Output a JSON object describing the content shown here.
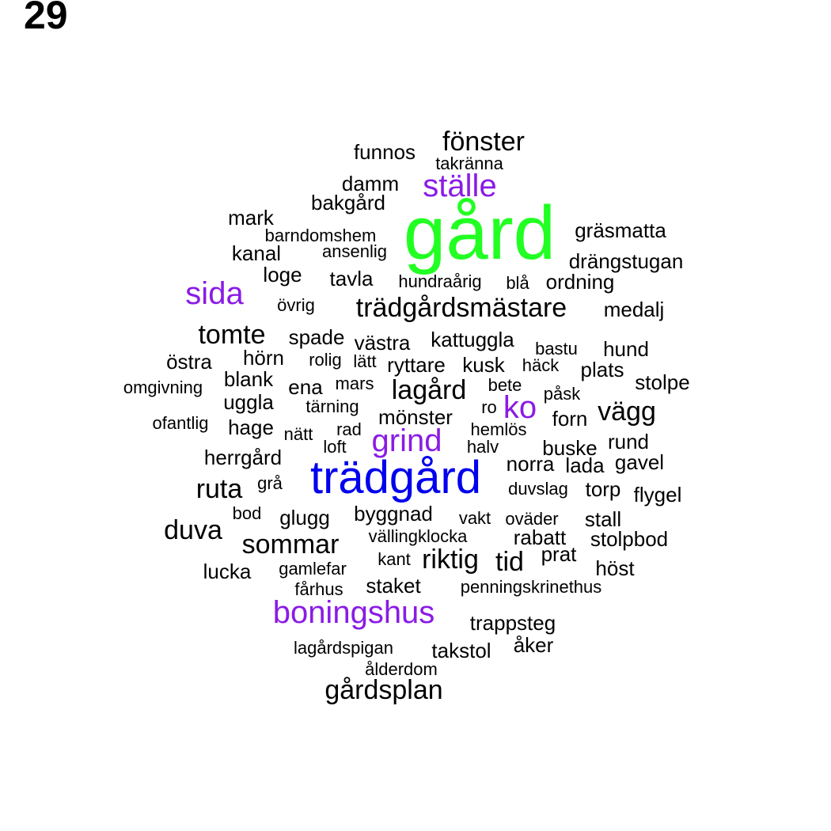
{
  "page_number": "29",
  "colors": {
    "default": "#000000",
    "green": "#22ff22",
    "blue": "#0000ee",
    "purple": "#8a1be6"
  },
  "words": [
    {
      "text": "gård",
      "color": "green",
      "size": "xxl"
    },
    {
      "text": "trädgård",
      "color": "blue",
      "size": "xl"
    },
    {
      "text": "ställe",
      "color": "purple",
      "size": "l"
    },
    {
      "text": "sida",
      "color": "purple",
      "size": "l"
    },
    {
      "text": "boningshus",
      "color": "purple",
      "size": "l"
    },
    {
      "text": "grind",
      "color": "purple",
      "size": "l"
    },
    {
      "text": "ko",
      "color": "purple",
      "size": "l"
    },
    {
      "text": "fönster",
      "color": "default",
      "size": "m"
    },
    {
      "text": "funnos",
      "color": "default",
      "size": "s"
    },
    {
      "text": "takränna",
      "color": "default",
      "size": "xs"
    },
    {
      "text": "damm",
      "color": "default",
      "size": "s"
    },
    {
      "text": "bakgård",
      "color": "default",
      "size": "s"
    },
    {
      "text": "mark",
      "color": "default",
      "size": "s"
    },
    {
      "text": "barndomshem",
      "color": "default",
      "size": "xs"
    },
    {
      "text": "kanal",
      "color": "default",
      "size": "s"
    },
    {
      "text": "ansenlig",
      "color": "default",
      "size": "xs"
    },
    {
      "text": "gräsmatta",
      "color": "default",
      "size": "s"
    },
    {
      "text": "drängstugan",
      "color": "default",
      "size": "s"
    },
    {
      "text": "loge",
      "color": "default",
      "size": "s"
    },
    {
      "text": "tavla",
      "color": "default",
      "size": "s"
    },
    {
      "text": "hundraårig",
      "color": "default",
      "size": "xs"
    },
    {
      "text": "blå",
      "color": "default",
      "size": "xs"
    },
    {
      "text": "ordning",
      "color": "default",
      "size": "s"
    },
    {
      "text": "övrig",
      "color": "default",
      "size": "xs"
    },
    {
      "text": "trädgårdsmästare",
      "color": "default",
      "size": "m"
    },
    {
      "text": "medalj",
      "color": "default",
      "size": "s"
    },
    {
      "text": "tomte",
      "color": "default",
      "size": "m"
    },
    {
      "text": "spade",
      "color": "default",
      "size": "s"
    },
    {
      "text": "västra",
      "color": "default",
      "size": "s"
    },
    {
      "text": "kattuggla",
      "color": "default",
      "size": "s"
    },
    {
      "text": "bastu",
      "color": "default",
      "size": "xs"
    },
    {
      "text": "hund",
      "color": "default",
      "size": "s"
    },
    {
      "text": "östra",
      "color": "default",
      "size": "s"
    },
    {
      "text": "hörn",
      "color": "default",
      "size": "s"
    },
    {
      "text": "rolig",
      "color": "default",
      "size": "xs"
    },
    {
      "text": "lätt",
      "color": "default",
      "size": "xs"
    },
    {
      "text": "ryttare",
      "color": "default",
      "size": "s"
    },
    {
      "text": "kusk",
      "color": "default",
      "size": "s"
    },
    {
      "text": "häck",
      "color": "default",
      "size": "xs"
    },
    {
      "text": "plats",
      "color": "default",
      "size": "s"
    },
    {
      "text": "blank",
      "color": "default",
      "size": "s"
    },
    {
      "text": "stolpe",
      "color": "default",
      "size": "s"
    },
    {
      "text": "omgivning",
      "color": "default",
      "size": "xs"
    },
    {
      "text": "ena",
      "color": "default",
      "size": "s"
    },
    {
      "text": "mars",
      "color": "default",
      "size": "xs"
    },
    {
      "text": "lagård",
      "color": "default",
      "size": "m"
    },
    {
      "text": "bete",
      "color": "default",
      "size": "xs"
    },
    {
      "text": "påsk",
      "color": "default",
      "size": "xs"
    },
    {
      "text": "uggla",
      "color": "default",
      "size": "s"
    },
    {
      "text": "tärning",
      "color": "default",
      "size": "xs"
    },
    {
      "text": "ro",
      "color": "default",
      "size": "xs"
    },
    {
      "text": "vägg",
      "color": "default",
      "size": "m"
    },
    {
      "text": "ofantlig",
      "color": "default",
      "size": "xs"
    },
    {
      "text": "hage",
      "color": "default",
      "size": "s"
    },
    {
      "text": "mönster",
      "color": "default",
      "size": "s"
    },
    {
      "text": "forn",
      "color": "default",
      "size": "s"
    },
    {
      "text": "nätt",
      "color": "default",
      "size": "xs"
    },
    {
      "text": "rad",
      "color": "default",
      "size": "xs"
    },
    {
      "text": "hemlös",
      "color": "default",
      "size": "xs"
    },
    {
      "text": "rund",
      "color": "default",
      "size": "s"
    },
    {
      "text": "loft",
      "color": "default",
      "size": "xs"
    },
    {
      "text": "halv",
      "color": "default",
      "size": "xs"
    },
    {
      "text": "buske",
      "color": "default",
      "size": "s"
    },
    {
      "text": "herrgård",
      "color": "default",
      "size": "s"
    },
    {
      "text": "norra",
      "color": "default",
      "size": "s"
    },
    {
      "text": "lada",
      "color": "default",
      "size": "s"
    },
    {
      "text": "gavel",
      "color": "default",
      "size": "s"
    },
    {
      "text": "ruta",
      "color": "default",
      "size": "m"
    },
    {
      "text": "grå",
      "color": "default",
      "size": "xs"
    },
    {
      "text": "duvslag",
      "color": "default",
      "size": "xs"
    },
    {
      "text": "torp",
      "color": "default",
      "size": "s"
    },
    {
      "text": "flygel",
      "color": "default",
      "size": "s"
    },
    {
      "text": "bod",
      "color": "default",
      "size": "xs"
    },
    {
      "text": "glugg",
      "color": "default",
      "size": "s"
    },
    {
      "text": "byggnad",
      "color": "default",
      "size": "s"
    },
    {
      "text": "vakt",
      "color": "default",
      "size": "xs"
    },
    {
      "text": "oväder",
      "color": "default",
      "size": "xs"
    },
    {
      "text": "stall",
      "color": "default",
      "size": "s"
    },
    {
      "text": "duva",
      "color": "default",
      "size": "m"
    },
    {
      "text": "sommar",
      "color": "default",
      "size": "m"
    },
    {
      "text": "vällingklocka",
      "color": "default",
      "size": "xs"
    },
    {
      "text": "rabatt",
      "color": "default",
      "size": "s"
    },
    {
      "text": "stolpbod",
      "color": "default",
      "size": "s"
    },
    {
      "text": "prat",
      "color": "default",
      "size": "s"
    },
    {
      "text": "lucka",
      "color": "default",
      "size": "s"
    },
    {
      "text": "gamlefar",
      "color": "default",
      "size": "xs"
    },
    {
      "text": "kant",
      "color": "default",
      "size": "xs"
    },
    {
      "text": "riktig",
      "color": "default",
      "size": "m"
    },
    {
      "text": "tid",
      "color": "default",
      "size": "m"
    },
    {
      "text": "höst",
      "color": "default",
      "size": "s"
    },
    {
      "text": "fårhus",
      "color": "default",
      "size": "xs"
    },
    {
      "text": "staket",
      "color": "default",
      "size": "s"
    },
    {
      "text": "penningskrinethus",
      "color": "default",
      "size": "xs"
    },
    {
      "text": "trappsteg",
      "color": "default",
      "size": "s"
    },
    {
      "text": "åker",
      "color": "default",
      "size": "s"
    },
    {
      "text": "lagårdspigan",
      "color": "default",
      "size": "xs"
    },
    {
      "text": "takstol",
      "color": "default",
      "size": "s"
    },
    {
      "text": "ålderdom",
      "color": "default",
      "size": "xs"
    },
    {
      "text": "gårdsplan",
      "color": "default",
      "size": "m"
    }
  ]
}
